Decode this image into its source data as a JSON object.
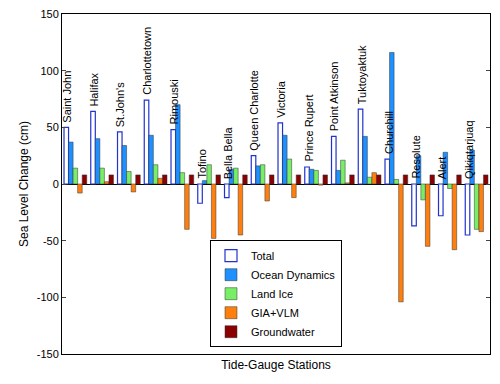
{
  "chart_data": {
    "type": "bar",
    "x_label": "Tide-Gauge Stations",
    "y_label": "Sea Level Change (cm)",
    "categories": [
      "Saint John",
      "Halifax",
      "St.John's",
      "Charlottetown",
      "Rimouski",
      "Tofino",
      "Bella Bella",
      "Queen Charlotte",
      "Victoria",
      "Prince Rupert",
      "Point Atkinson",
      "Tuktoyaktuk",
      "Churchill",
      "Resolute",
      "Alert",
      "Qikiqtarjuaq"
    ],
    "series": [
      {
        "name": "Total",
        "color": "#2233cc",
        "marker": "hollow",
        "values": [
          50,
          64,
          46,
          74,
          48,
          -17,
          -12,
          25,
          54,
          15,
          42,
          66,
          22,
          -37,
          -28,
          -45
        ]
      },
      {
        "name": "Ocean Dynamics",
        "color": "#1e90ff",
        "values": [
          37,
          40,
          34,
          43,
          70,
          3,
          13,
          16,
          43,
          13,
          12,
          42,
          116,
          25,
          28,
          30
        ]
      },
      {
        "name": "Land Ice",
        "color": "#77ee66",
        "values": [
          14,
          14,
          11,
          17,
          10,
          17,
          14,
          17,
          22,
          12,
          21,
          6,
          4,
          -14,
          -4,
          -40
        ]
      },
      {
        "name": "GIA+VLM",
        "color": "#ff7f0e",
        "values": [
          -8,
          2,
          -7,
          5,
          -40,
          -48,
          -45,
          -15,
          -12,
          -1,
          1,
          10,
          -104,
          -55,
          -58,
          -42
        ]
      },
      {
        "name": "Groundwater",
        "color": "#8b0000",
        "values": [
          8,
          8,
          8,
          8,
          8,
          8,
          8,
          8,
          8,
          8,
          8,
          8,
          8,
          8,
          8,
          8
        ]
      }
    ],
    "ylim": [
      -150,
      150
    ],
    "yticks": [
      -150,
      -100,
      -50,
      0,
      50,
      100,
      150
    ],
    "tick_labels": "y",
    "legend": "bottom",
    "grid": false
  }
}
